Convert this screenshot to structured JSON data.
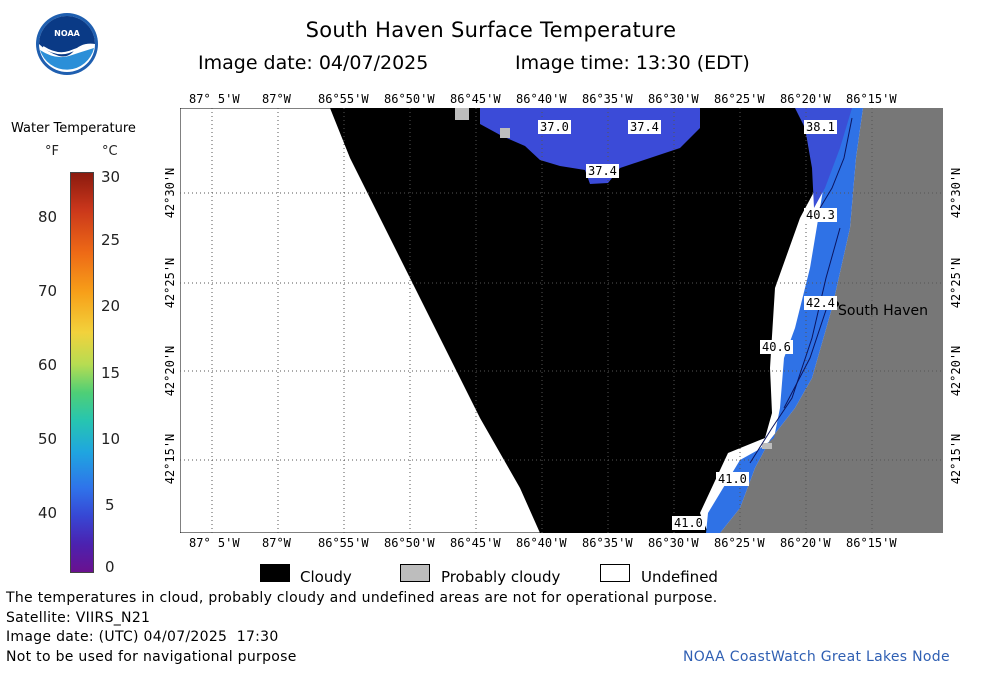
{
  "header": {
    "title": "South Haven Surface Temperature",
    "image_date": "Image date: 04/07/2025",
    "image_time": "Image time: 13:30 (EDT)"
  },
  "logo": {
    "text": "NOAA"
  },
  "legend": {
    "title": "Water Temperature",
    "unit_f": "°F",
    "unit_c": "°C",
    "f_labels": [
      "80",
      "70",
      "60",
      "50",
      "40"
    ],
    "c_labels": [
      "30",
      "25",
      "20",
      "15",
      "10",
      "5",
      "0"
    ]
  },
  "map": {
    "longitude_labels": [
      "87° 5'W",
      "87°W",
      "86°55'W",
      "86°50'W",
      "86°45'W",
      "86°40'W",
      "86°35'W",
      "86°30'W",
      "86°25'W",
      "86°20'W",
      "86°15'W"
    ],
    "latitude_labels": [
      "42°30'N",
      "42°25'N",
      "42°20'N",
      "42°15'N"
    ],
    "temperature_labels": [
      "37.0",
      "37.4",
      "38.1",
      "37.4",
      "40.3",
      "42.4",
      "40.6",
      "41.0",
      "41.0"
    ],
    "city_label": "South Haven",
    "colors": {
      "cloudy": "#000000",
      "land": "#777777",
      "water_cold": "#3b4bd8",
      "water_warm": "#2f7be8",
      "probably_cloudy": "#bdbdbd"
    }
  },
  "key": {
    "cloudy": "Cloudy",
    "probably_cloudy": "Probably cloudy",
    "undefined": "Undefined"
  },
  "footer": {
    "note": "The temperatures in cloud, probably cloudy and undefined areas are not for operational purpose.",
    "satellite": "Satellite: VIIRS_N21",
    "utc_date": "Image date: (UTC) 04/07/2025  17:30",
    "nav_warning": "Not to be used for navigational purpose",
    "credit": "NOAA CoastWatch Great Lakes Node"
  }
}
